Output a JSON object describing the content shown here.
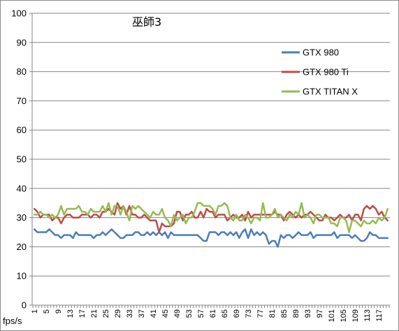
{
  "chart_data": {
    "type": "line",
    "title": "巫師3",
    "xlabel": "fps/s",
    "ylabel": "",
    "ylim": [
      0,
      100
    ],
    "yticks": [
      0,
      10,
      20,
      30,
      40,
      50,
      60,
      70,
      80,
      90,
      100
    ],
    "x": [
      1,
      2,
      3,
      4,
      5,
      6,
      7,
      8,
      9,
      10,
      11,
      12,
      13,
      14,
      15,
      16,
      17,
      18,
      19,
      20,
      21,
      22,
      23,
      24,
      25,
      26,
      27,
      28,
      29,
      30,
      31,
      32,
      33,
      34,
      35,
      36,
      37,
      38,
      39,
      40,
      41,
      42,
      43,
      44,
      45,
      46,
      47,
      48,
      49,
      50,
      51,
      52,
      53,
      54,
      55,
      56,
      57,
      58,
      59,
      60,
      61,
      62,
      63,
      64,
      65,
      66,
      67,
      68,
      69,
      70,
      71,
      72,
      73,
      74,
      75,
      76,
      77,
      78,
      79,
      80,
      81,
      82,
      83,
      84,
      85,
      86,
      87,
      88,
      89,
      90,
      91,
      92,
      93,
      94,
      95,
      96,
      97,
      98,
      99,
      100,
      101,
      102,
      103,
      104,
      105,
      106,
      107,
      108,
      109,
      110,
      111,
      112,
      113,
      114,
      115,
      116,
      117,
      118,
      119,
      120
    ],
    "xtick_labels": [
      "1",
      "5",
      "9",
      "13",
      "17",
      "21",
      "25",
      "29",
      "33",
      "37",
      "41",
      "45",
      "49",
      "53",
      "57",
      "61",
      "65",
      "69",
      "73",
      "77",
      "81",
      "85",
      "89",
      "93",
      "97",
      "101",
      "105",
      "109",
      "113",
      "117"
    ],
    "grid": "horizontal",
    "legend_position": "top-right",
    "series": [
      {
        "name": "GTX 980",
        "color": "#4a7ebb",
        "values": [
          26,
          25,
          25,
          25,
          25,
          26,
          25,
          24,
          24,
          23,
          24,
          24,
          24,
          23,
          25,
          24,
          24,
          24,
          24,
          24,
          23,
          24,
          24,
          25,
          24,
          25,
          26,
          25,
          24,
          23,
          23,
          24,
          24,
          24,
          25,
          25,
          24,
          24,
          25,
          24,
          25,
          24,
          25,
          24,
          25,
          23,
          25,
          24,
          24,
          24,
          24,
          24,
          24,
          24,
          24,
          24,
          23,
          22,
          22,
          25,
          25,
          25,
          24,
          25,
          25,
          24,
          25,
          24,
          25,
          23,
          25,
          26,
          23,
          26,
          24,
          25,
          24,
          25,
          24,
          21,
          22,
          22,
          20,
          24,
          23,
          24,
          24,
          23,
          24,
          25,
          24,
          24,
          24,
          25,
          23,
          24,
          24,
          24,
          24,
          24,
          24,
          25,
          23,
          24,
          24,
          24,
          24,
          23,
          24,
          23,
          22,
          22,
          23,
          25,
          24,
          24,
          23,
          23,
          23,
          23
        ]
      },
      {
        "name": "GTX 980 Ti",
        "color": "#be4b48",
        "values": [
          33,
          32,
          30,
          31,
          31,
          31,
          29,
          30,
          30,
          28,
          30,
          31,
          31,
          30,
          30,
          30,
          31,
          31,
          31,
          30,
          31,
          31,
          30,
          32,
          32,
          33,
          32,
          31,
          35,
          33,
          34,
          31,
          34,
          31,
          31,
          30,
          30,
          31,
          30,
          29,
          29,
          29,
          25,
          28,
          27,
          27,
          27,
          28,
          32,
          32,
          29,
          31,
          31,
          32,
          30,
          30,
          32,
          30,
          33,
          32,
          32,
          30,
          31,
          31,
          31,
          29,
          30,
          31,
          30,
          30,
          31,
          29,
          32,
          30,
          31,
          31,
          31,
          31,
          31,
          31,
          31,
          32,
          31,
          31,
          29,
          31,
          32,
          31,
          30,
          31,
          30,
          31,
          31,
          32,
          31,
          30,
          29,
          29,
          31,
          30,
          30,
          29,
          30,
          31,
          30,
          30,
          31,
          29,
          31,
          31,
          29,
          33,
          34,
          33,
          34,
          33,
          31,
          32,
          30,
          29
        ]
      },
      {
        "name": "GTX TITAN X",
        "color": "#98b954",
        "values": [
          31,
          31,
          32,
          31,
          31,
          30,
          31,
          30,
          31,
          34,
          31,
          33,
          33,
          33,
          33,
          34,
          32,
          32,
          31,
          33,
          32,
          32,
          32,
          34,
          32,
          35,
          31,
          34,
          34,
          31,
          34,
          32,
          29,
          34,
          33,
          34,
          33,
          32,
          31,
          30,
          32,
          31,
          31,
          33,
          30,
          29,
          27,
          31,
          29,
          30,
          31,
          28,
          30,
          30,
          32,
          35,
          35,
          34,
          34,
          34,
          33,
          31,
          34,
          34,
          35,
          34,
          30,
          29,
          31,
          29,
          29,
          31,
          30,
          28,
          30,
          30,
          29,
          35,
          30,
          30,
          31,
          33,
          30,
          31,
          30,
          29,
          31,
          30,
          32,
          31,
          35,
          30,
          31,
          30,
          28,
          31,
          31,
          30,
          30,
          30,
          28,
          28,
          27,
          30,
          30,
          29,
          25,
          29,
          29,
          28,
          27,
          29,
          28,
          28,
          29,
          28,
          30,
          29,
          30,
          33
        ]
      }
    ]
  }
}
